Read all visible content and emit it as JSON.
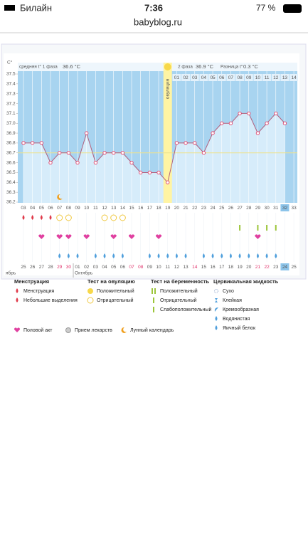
{
  "status_bar": {
    "carrier": "Билайн",
    "time": "7:36",
    "battery": "77 %"
  },
  "url": "babyblog.ru",
  "chart_data": {
    "type": "line",
    "y_unit": "C°",
    "phase1_label": "средняя t° 1 фаза",
    "phase1_value": "36.6 °C",
    "phase2_label": "2 фаза",
    "phase2_value": "36.9 °C",
    "diff_label": "Разница t°",
    "diff_value": "0.3 °C",
    "ovulation_label": "овуляция",
    "ovulation_day": "19",
    "current_day": "32",
    "categories": [
      "03",
      "04",
      "05",
      "06",
      "07",
      "08",
      "09",
      "10",
      "11",
      "12",
      "13",
      "14",
      "15",
      "16",
      "17",
      "18",
      "19",
      "20",
      "21",
      "22",
      "23",
      "24",
      "25",
      "26",
      "27",
      "28",
      "29",
      "30",
      "31",
      "32",
      "33"
    ],
    "phase2_days": [
      "01",
      "02",
      "03",
      "04",
      "05",
      "06",
      "07",
      "08",
      "09",
      "10",
      "11",
      "12",
      "13",
      "14"
    ],
    "dates": [
      "25",
      "26",
      "27",
      "28",
      "29",
      "30",
      "01",
      "02",
      "03",
      "04",
      "05",
      "06",
      "07",
      "08",
      "09",
      "10",
      "11",
      "12",
      "13",
      "14",
      "15",
      "16",
      "17",
      "18",
      "19",
      "20",
      "21",
      "22",
      "23",
      "24",
      "25"
    ],
    "weekend": [
      false,
      false,
      false,
      false,
      true,
      true,
      false,
      false,
      false,
      false,
      false,
      false,
      true,
      true,
      false,
      false,
      false,
      false,
      false,
      true,
      false,
      false,
      false,
      false,
      false,
      false,
      true,
      true,
      false,
      false,
      false
    ],
    "months": [
      "ябрь",
      "Октябрь"
    ],
    "values": [
      36.8,
      36.8,
      36.8,
      36.6,
      36.7,
      36.7,
      36.6,
      36.9,
      36.6,
      36.7,
      36.7,
      36.7,
      36.6,
      36.5,
      36.5,
      36.5,
      36.4,
      36.8,
      36.8,
      36.8,
      36.7,
      36.9,
      37.0,
      37.0,
      37.1,
      37.1,
      36.9,
      37.0,
      37.1,
      37.0,
      null
    ],
    "color": "#b0607e",
    "point_color": "#e0406a",
    "coverline": 36.7,
    "ylim": [
      36.2,
      37.5
    ],
    "yticks": [
      36.2,
      36.3,
      36.4,
      36.5,
      36.6,
      36.7,
      36.8,
      36.9,
      {
        "value": 37,
        "label": "37.0"
      },
      37.1,
      37.2,
      37.3,
      37.4,
      37.5
    ],
    "marker_rows": [
      {
        "kind": "menstruation",
        "days": [
          "03",
          "04",
          "05",
          "06"
        ]
      },
      {
        "kind": "ovulation-negative",
        "days": [
          "07",
          "08",
          "12",
          "13",
          "14"
        ]
      },
      {
        "kind": "pregnancy-negative",
        "days": [
          "27",
          "29",
          "30",
          "31"
        ]
      },
      {
        "kind": "intercourse",
        "days": [
          "05",
          "07",
          "08",
          "10",
          "13",
          "15",
          "18",
          "29"
        ]
      },
      {
        "kind": "cervical",
        "days": [
          "07",
          "08",
          "09",
          "11",
          "12",
          "13",
          "14",
          "17",
          "18",
          "19",
          "20",
          "21",
          "23",
          "24",
          "25",
          "26",
          "27",
          "28",
          "29",
          "30",
          "31"
        ]
      },
      {
        "kind": "moon",
        "days": [
          "07"
        ]
      }
    ]
  },
  "legend": {
    "groups": [
      {
        "title": "Менструация",
        "items": [
          "Менструация",
          "Небольшие выделения"
        ]
      },
      {
        "title": "Тест на овуляцию",
        "items": [
          "Положительный",
          "Отрицательный"
        ]
      },
      {
        "title": "Тест на беременность",
        "items": [
          "Положительный",
          "Отрицательный",
          "Слабоположительный"
        ]
      },
      {
        "title": "Цервикальная жидкость",
        "items": [
          "Сухо",
          "Клейкая",
          "Кремообразная",
          "Водянистая",
          "Яичный белок"
        ]
      }
    ],
    "extra": [
      "Половой акт",
      "Прием лекарств",
      "Лунный календарь"
    ]
  }
}
